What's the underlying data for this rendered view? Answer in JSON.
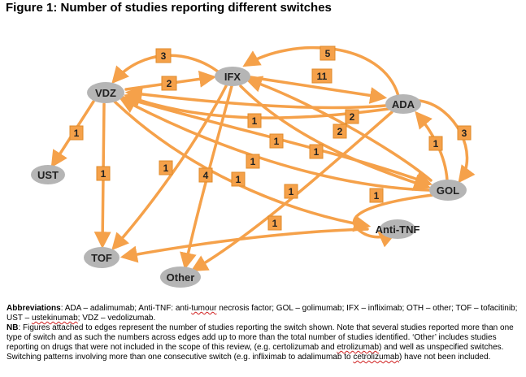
{
  "title": "Figure 1: Number of studies reporting different switches",
  "colors": {
    "edge": "#f5a14a",
    "node": "#b5b5b5",
    "label_bg": "#f5a14a"
  },
  "nodes": {
    "IFX": "IFX",
    "VDZ": "VDZ",
    "ADA": "ADA",
    "UST": "UST",
    "GOL": "GOL",
    "TOF": "TOF",
    "ANTI_TNF": "Anti-TNF",
    "OTHER": "Other"
  },
  "edges": [
    {
      "id": "ifx-vdz",
      "value": "3"
    },
    {
      "id": "vdz-ifx",
      "value": "2"
    },
    {
      "id": "ada-ifx",
      "value": "5"
    },
    {
      "id": "ifx-ada",
      "value": "11"
    },
    {
      "id": "vdz-ust",
      "value": "1"
    },
    {
      "id": "vdz-tof",
      "value": "1"
    },
    {
      "id": "ifx-tof",
      "value": "1"
    },
    {
      "id": "ifx-other",
      "value": "4"
    },
    {
      "id": "ada-vdz",
      "value": "1"
    },
    {
      "id": "ada-vdz-2",
      "value": "2"
    },
    {
      "id": "gol-ifx",
      "value": "2"
    },
    {
      "id": "vdz-gol",
      "value": "1"
    },
    {
      "id": "ifx-gol",
      "value": "1"
    },
    {
      "id": "gol-vdz",
      "value": "1"
    },
    {
      "id": "vdz-antitnf",
      "value": "1"
    },
    {
      "id": "ada-other",
      "value": "1"
    },
    {
      "id": "gol-ada",
      "value": "1"
    },
    {
      "id": "ada-gol",
      "value": "3"
    },
    {
      "id": "gol-antitnf",
      "value": "1"
    },
    {
      "id": "antitnf-tof",
      "value": "1"
    }
  ],
  "notes": {
    "abbrev_label": "Abbreviations",
    "abbrev_text_a": ": ADA – adalimumab; Anti-TNF: anti-",
    "abbrev_tumour": "tumour",
    "abbrev_text_b": " necrosis factor; GOL – golimumab; IFX – infliximab; OTH – other; TOF – tofacitinib; UST – ",
    "abbrev_ustek": "ustekinumab",
    "abbrev_text_c": "; VDZ – vedolizumab.",
    "nb_label": "NB",
    "nb_text_a": ": Figures attached to edges represent the number of studies reporting the switch shown. Note that several studies reported more than one type of switch and as such the numbers across edges add up to more than the total number of studies identified. ‘Other’ includes studies reporting on drugs that were not included in the scope of this review, (e.g. certolizumab and ",
    "nb_etrol": "etrolizumab",
    "nb_text_b": ") and well as unspecified switches. Switching patterns involving more than one consecutive switch (e.g. infliximab to adalimumab to ",
    "nb_cetrol": "cetrolizumab",
    "nb_text_c": ") have not been included."
  }
}
